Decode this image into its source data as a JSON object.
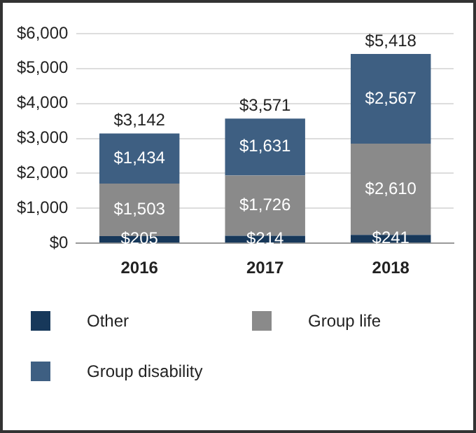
{
  "chart_data": {
    "type": "bar",
    "stacked": true,
    "categories": [
      "2016",
      "2017",
      "2018"
    ],
    "series": [
      {
        "name": "Other",
        "color": "#17385a",
        "values": [
          205,
          214,
          241
        ],
        "value_labels": [
          "$205",
          "$214",
          "$241"
        ]
      },
      {
        "name": "Group life",
        "color": "#8a8a8a",
        "values": [
          1503,
          1726,
          2610
        ],
        "value_labels": [
          "$1,503",
          "$1,726",
          "$2,610"
        ]
      },
      {
        "name": "Group disability",
        "color": "#3e5f82",
        "values": [
          1434,
          1631,
          2567
        ],
        "value_labels": [
          "$1,434",
          "$1,631",
          "$2,567"
        ]
      }
    ],
    "totals": [
      "$3,142",
      "$3,571",
      "$5,418"
    ],
    "ylim": [
      0,
      6000
    ],
    "yticks": [
      {
        "value": 0,
        "label": "$0"
      },
      {
        "value": 1000,
        "label": "$1,000"
      },
      {
        "value": 2000,
        "label": "$2,000"
      },
      {
        "value": 3000,
        "label": "$3,000"
      },
      {
        "value": 4000,
        "label": "$4,000"
      },
      {
        "value": 5000,
        "label": "$5,000"
      },
      {
        "value": 6000,
        "label": "$6,000"
      }
    ],
    "grid": "y",
    "legend": "bottom"
  }
}
